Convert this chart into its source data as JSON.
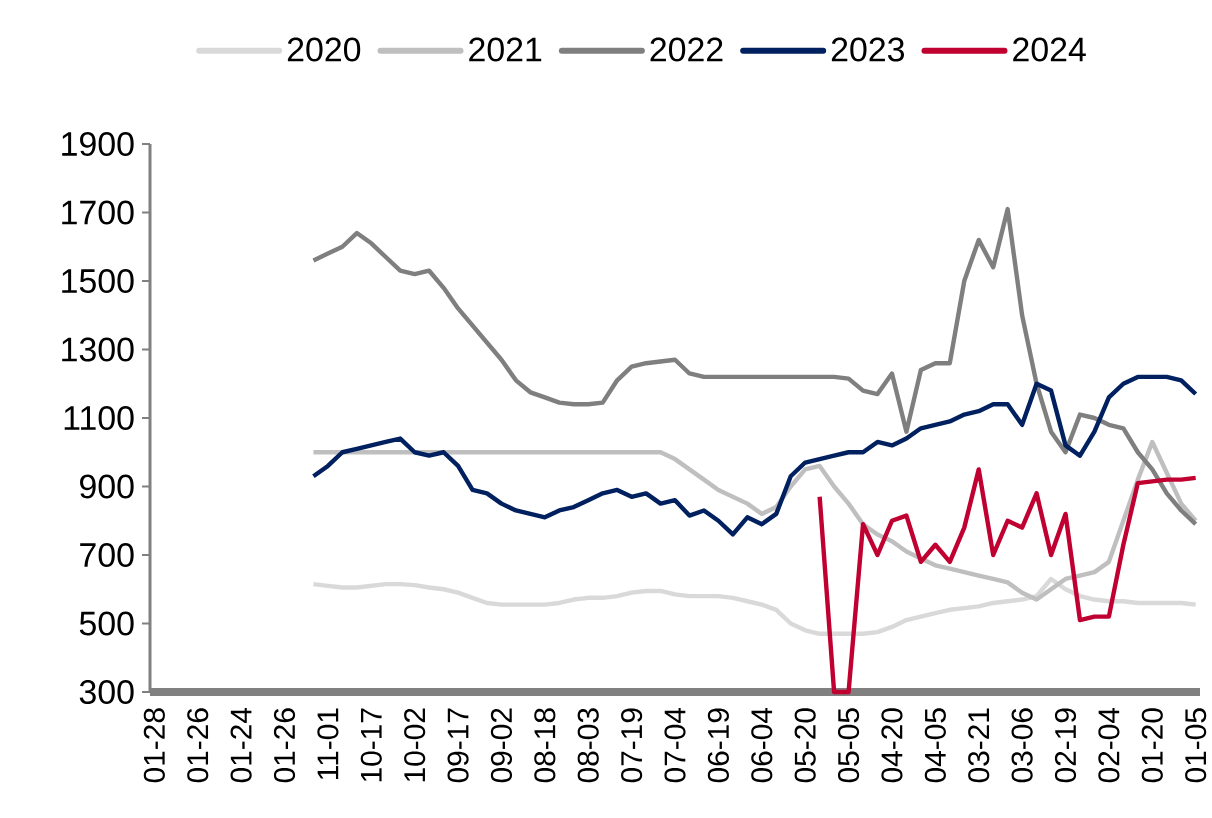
{
  "chart_data": {
    "type": "line",
    "categories": [
      "01-28",
      null,
      null,
      "01-26",
      null,
      null,
      "01-24",
      null,
      null,
      "01-26",
      null,
      null,
      "11-01",
      null,
      null,
      "10-17",
      null,
      null,
      "10-02",
      null,
      null,
      "09-17",
      null,
      null,
      "09-02",
      null,
      null,
      "08-18",
      null,
      null,
      "08-03",
      null,
      null,
      "07-19",
      null,
      null,
      "07-04",
      null,
      null,
      "06-19",
      null,
      null,
      "06-04",
      null,
      null,
      "05-20",
      null,
      null,
      "05-05",
      null,
      null,
      "04-20",
      null,
      null,
      "04-05",
      null,
      null,
      "03-21",
      null,
      null,
      "03-06",
      null,
      null,
      "02-19",
      null,
      null,
      "02-04",
      null,
      null,
      "01-20",
      null,
      null,
      "01-05"
    ],
    "series": [
      {
        "name": "2020",
        "color": "#d9d9d9",
        "values": [
          null,
          null,
          null,
          null,
          null,
          null,
          null,
          null,
          null,
          null,
          null,
          615,
          610,
          605,
          605,
          610,
          615,
          615,
          612,
          605,
          600,
          590,
          575,
          560,
          555,
          555,
          555,
          555,
          560,
          570,
          575,
          575,
          580,
          590,
          595,
          595,
          585,
          580,
          580,
          580,
          575,
          565,
          555,
          540,
          500,
          480,
          470,
          470,
          470,
          470,
          475,
          490,
          510,
          520,
          530,
          540,
          545,
          550,
          560,
          565,
          570,
          580,
          630,
          600,
          580,
          570,
          565,
          565,
          560,
          560,
          560,
          560,
          555
        ]
      },
      {
        "name": "2021",
        "color": "#bfbfbf",
        "values": [
          null,
          null,
          null,
          null,
          null,
          null,
          null,
          null,
          null,
          null,
          null,
          1000,
          1000,
          1000,
          1000,
          1000,
          1000,
          1000,
          1000,
          1000,
          1000,
          1000,
          1000,
          1000,
          1000,
          1000,
          1000,
          1000,
          1000,
          1000,
          1000,
          1000,
          1000,
          1000,
          1000,
          1000,
          980,
          950,
          920,
          890,
          870,
          850,
          820,
          840,
          900,
          950,
          960,
          900,
          850,
          790,
          760,
          740,
          710,
          690,
          670,
          660,
          650,
          640,
          630,
          620,
          590,
          570,
          600,
          630,
          640,
          650,
          680,
          800,
          920,
          1030,
          940,
          850,
          800
        ]
      },
      {
        "name": "2022",
        "color": "#7f7f7f",
        "values": [
          null,
          null,
          null,
          null,
          null,
          null,
          null,
          null,
          null,
          null,
          null,
          1560,
          1580,
          1600,
          1640,
          1610,
          1570,
          1530,
          1520,
          1530,
          1480,
          1420,
          1370,
          1320,
          1270,
          1210,
          1175,
          1160,
          1145,
          1140,
          1140,
          1145,
          1210,
          1250,
          1260,
          1265,
          1270,
          1230,
          1220,
          1220,
          1220,
          1220,
          1220,
          1220,
          1220,
          1220,
          1220,
          1220,
          1215,
          1180,
          1170,
          1230,
          1060,
          1240,
          1260,
          1260,
          1500,
          1620,
          1540,
          1710,
          1400,
          1200,
          1060,
          1000,
          1110,
          1100,
          1080,
          1070,
          1000,
          950,
          880,
          830,
          790
        ]
      },
      {
        "name": "2023",
        "color": "#002060",
        "values": [
          null,
          null,
          null,
          null,
          null,
          null,
          null,
          null,
          null,
          null,
          null,
          930,
          960,
          1000,
          1010,
          1020,
          1030,
          1040,
          1000,
          990,
          1000,
          960,
          890,
          880,
          850,
          830,
          820,
          810,
          830,
          840,
          860,
          880,
          890,
          870,
          880,
          850,
          860,
          815,
          830,
          800,
          760,
          810,
          790,
          820,
          930,
          970,
          980,
          990,
          1000,
          1000,
          1030,
          1020,
          1040,
          1070,
          1080,
          1090,
          1110,
          1120,
          1140,
          1140,
          1080,
          1200,
          1180,
          1020,
          990,
          1060,
          1160,
          1200,
          1220,
          1220,
          1220,
          1210,
          1170
        ]
      },
      {
        "name": "2024",
        "color": "#c00030",
        "values": [
          null,
          null,
          null,
          null,
          null,
          null,
          null,
          null,
          null,
          null,
          null,
          null,
          null,
          null,
          null,
          null,
          null,
          null,
          null,
          null,
          null,
          null,
          null,
          null,
          null,
          null,
          null,
          null,
          null,
          null,
          null,
          null,
          null,
          null,
          null,
          null,
          null,
          null,
          null,
          null,
          null,
          null,
          null,
          null,
          null,
          null,
          870,
          300,
          300,
          790,
          700,
          800,
          815,
          680,
          730,
          680,
          780,
          950,
          700,
          800,
          780,
          880,
          700,
          820,
          510,
          520,
          520,
          730,
          910,
          915,
          920,
          920,
          925
        ]
      }
    ],
    "ylim": [
      300,
      1900
    ],
    "yticks": [
      300,
      500,
      700,
      900,
      1100,
      1300,
      1500,
      1700,
      1900
    ],
    "legend": "top"
  }
}
